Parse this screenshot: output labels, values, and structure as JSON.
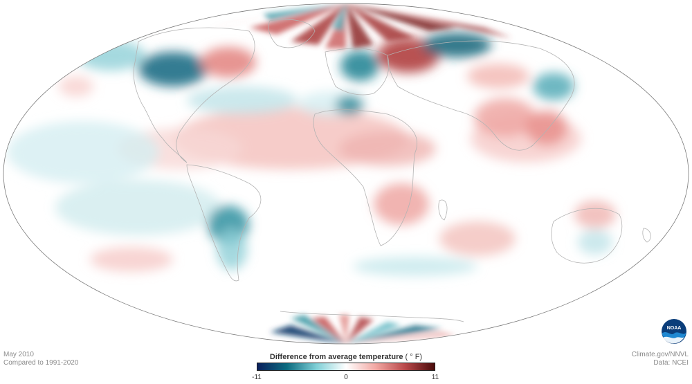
{
  "caption_left": {
    "date": "May 2010",
    "baseline": "Compared to 1991-2020"
  },
  "caption_right": {
    "source": "Climate.gov/NNVL",
    "data": "Data: NCEI"
  },
  "legend": {
    "title": "Difference from average temperature",
    "unit": "( ° F)",
    "ticks": {
      "min": "-11",
      "mid": "0",
      "max": "11"
    },
    "min_value": -11,
    "max_value": 11,
    "colors": [
      "#0a1f5c",
      "#0b6b7f",
      "#7fcfd6",
      "#ffffff",
      "#f2a8a3",
      "#b9484a",
      "#4a0b0b"
    ]
  },
  "logo": {
    "name": "NOAA",
    "text": "NOAA"
  },
  "map": {
    "projection": "Mollweide-like equal-area (ellipse)",
    "ocean_fill": "#ffffff",
    "border_color": "#b5b5b5"
  }
}
